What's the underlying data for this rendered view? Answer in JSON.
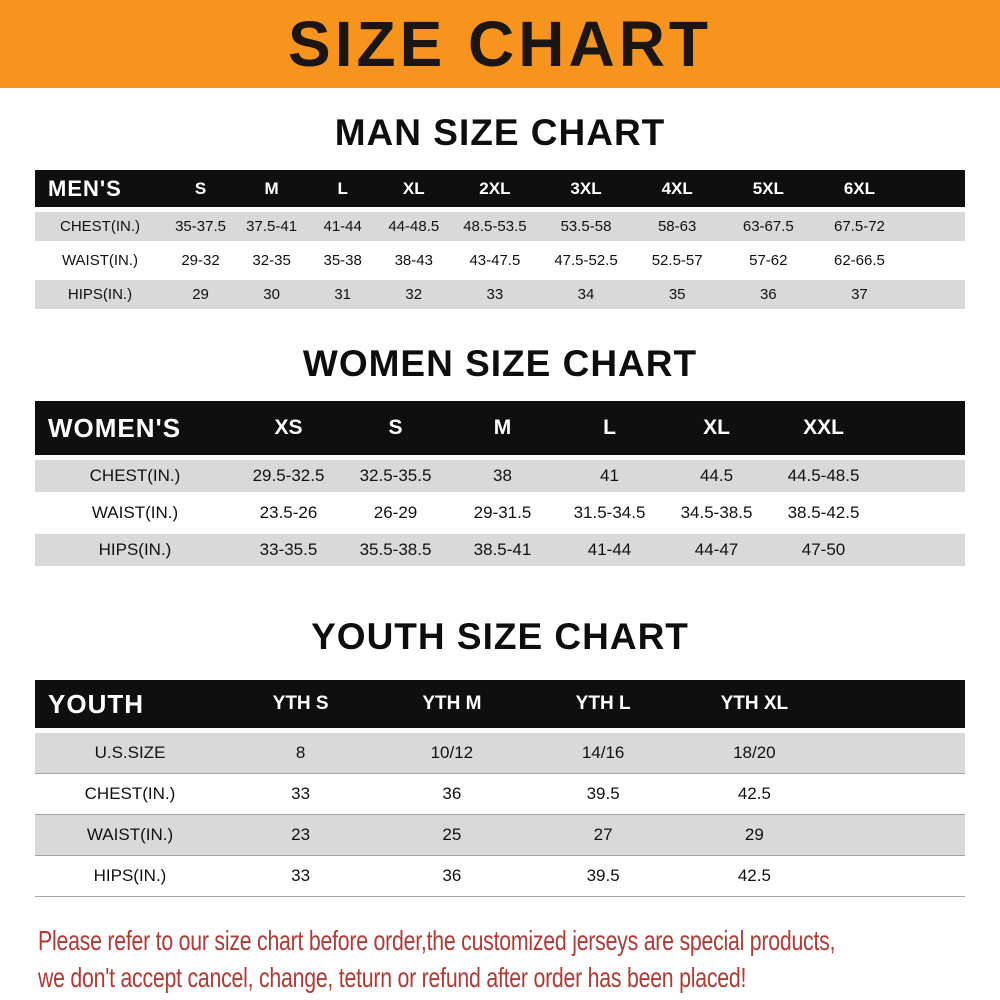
{
  "banner": {
    "title": "SIZE CHART",
    "bg_color": "#f7941d"
  },
  "sections": [
    {
      "heading": "MAN SIZE CHART",
      "table": {
        "label": "MEN'S",
        "columns": [
          "S",
          "M",
          "L",
          "XL",
          "2XL",
          "3XL",
          "4XL",
          "5XL",
          "6XL"
        ],
        "rows": [
          {
            "label": "CHEST(IN.)",
            "values": [
              "35-37.5",
              "37.5-41",
              "41-44",
              "44-48.5",
              "48.5-53.5",
              "53.5-58",
              "58-63",
              "63-67.5",
              "67.5-72"
            ]
          },
          {
            "label": "WAIST(IN.)",
            "values": [
              "29-32",
              "32-35",
              "35-38",
              "38-43",
              "43-47.5",
              "47.5-52.5",
              "52.5-57",
              "57-62",
              "62-66.5"
            ]
          },
          {
            "label": "HIPS(IN.)",
            "values": [
              "29",
              "30",
              "31",
              "32",
              "33",
              "34",
              "35",
              "36",
              "37"
            ]
          }
        ]
      }
    },
    {
      "heading": "WOMEN SIZE CHART",
      "table": {
        "label": "WOMEN'S",
        "columns": [
          "XS",
          "S",
          "M",
          "L",
          "XL",
          "XXL"
        ],
        "rows": [
          {
            "label": "CHEST(IN.)",
            "values": [
              "29.5-32.5",
              "32.5-35.5",
              "38",
              "41",
              "44.5",
              "44.5-48.5"
            ]
          },
          {
            "label": "WAIST(IN.)",
            "values": [
              "23.5-26",
              "26-29",
              "29-31.5",
              "31.5-34.5",
              "34.5-38.5",
              "38.5-42.5"
            ]
          },
          {
            "label": "HIPS(IN.)",
            "values": [
              "33-35.5",
              "35.5-38.5",
              "38.5-41",
              "41-44",
              "44-47",
              "47-50"
            ]
          }
        ]
      }
    },
    {
      "heading": "YOUTH SIZE CHART",
      "table": {
        "label": "YOUTH",
        "columns": [
          "YTH S",
          "YTH M",
          "YTH L",
          "YTH XL"
        ],
        "rows": [
          {
            "label": "U.S.SIZE",
            "values": [
              "8",
              "10/12",
              "14/16",
              "18/20"
            ]
          },
          {
            "label": "CHEST(IN.)",
            "values": [
              "33",
              "36",
              "39.5",
              "42.5"
            ]
          },
          {
            "label": "WAIST(IN.)",
            "values": [
              "23",
              "25",
              "27",
              "29"
            ]
          },
          {
            "label": "HIPS(IN.)",
            "values": [
              "33",
              "36",
              "39.5",
              "42.5"
            ]
          }
        ]
      }
    }
  ],
  "footer": {
    "lines": [
      "Please refer to our size chart before order,the customized jerseys are special products,",
      "we don't accept cancel, change, teturn or refund after order has been placed!"
    ],
    "color": "#b23a34"
  },
  "chart_data": [
    {
      "type": "table",
      "title": "MAN SIZE CHART",
      "columns": [
        "MEN'S",
        "S",
        "M",
        "L",
        "XL",
        "2XL",
        "3XL",
        "4XL",
        "5XL",
        "6XL"
      ],
      "rows": [
        [
          "CHEST(IN.)",
          "35-37.5",
          "37.5-41",
          "41-44",
          "44-48.5",
          "48.5-53.5",
          "53.5-58",
          "58-63",
          "63-67.5",
          "67.5-72"
        ],
        [
          "WAIST(IN.)",
          "29-32",
          "32-35",
          "35-38",
          "38-43",
          "43-47.5",
          "47.5-52.5",
          "52.5-57",
          "57-62",
          "62-66.5"
        ],
        [
          "HIPS(IN.)",
          "29",
          "30",
          "31",
          "32",
          "33",
          "34",
          "35",
          "36",
          "37"
        ]
      ]
    },
    {
      "type": "table",
      "title": "WOMEN SIZE CHART",
      "columns": [
        "WOMEN'S",
        "XS",
        "S",
        "M",
        "L",
        "XL",
        "XXL"
      ],
      "rows": [
        [
          "CHEST(IN.)",
          "29.5-32.5",
          "32.5-35.5",
          "38",
          "41",
          "44.5",
          "44.5-48.5"
        ],
        [
          "WAIST(IN.)",
          "23.5-26",
          "26-29",
          "29-31.5",
          "31.5-34.5",
          "34.5-38.5",
          "38.5-42.5"
        ],
        [
          "HIPS(IN.)",
          "33-35.5",
          "35.5-38.5",
          "38.5-41",
          "41-44",
          "44-47",
          "47-50"
        ]
      ]
    },
    {
      "type": "table",
      "title": "YOUTH SIZE CHART",
      "columns": [
        "YOUTH",
        "YTH S",
        "YTH M",
        "YTH L",
        "YTH XL"
      ],
      "rows": [
        [
          "U.S.SIZE",
          "8",
          "10/12",
          "14/16",
          "18/20"
        ],
        [
          "CHEST(IN.)",
          "33",
          "36",
          "39.5",
          "42.5"
        ],
        [
          "WAIST(IN.)",
          "23",
          "25",
          "27",
          "29"
        ],
        [
          "HIPS(IN.)",
          "33",
          "36",
          "39.5",
          "42.5"
        ]
      ]
    }
  ]
}
